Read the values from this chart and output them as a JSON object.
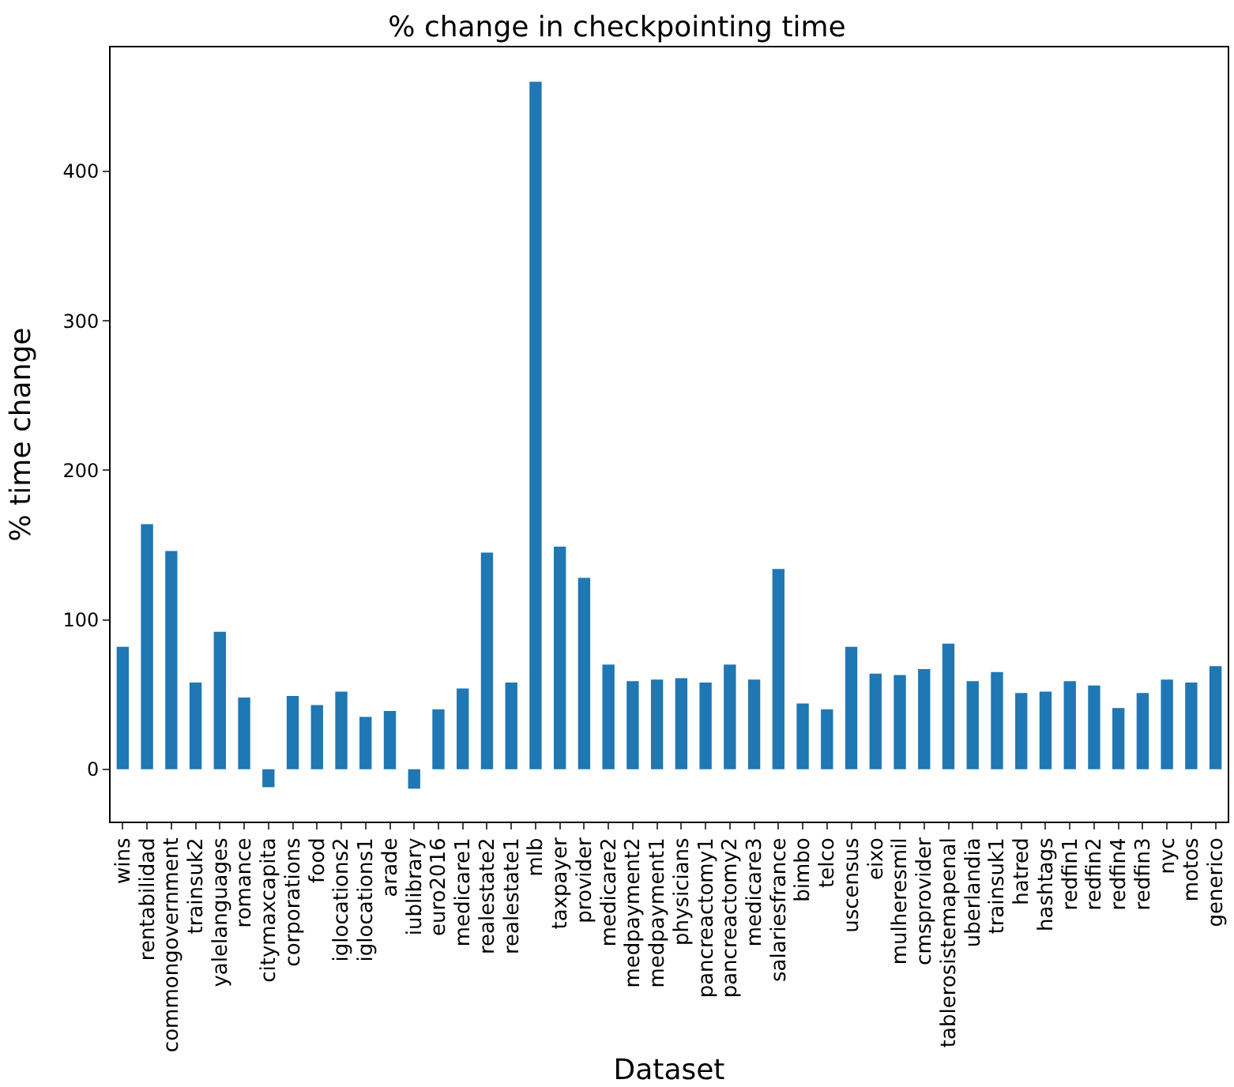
{
  "chart_data": {
    "type": "bar",
    "title": "% change in checkpointing time",
    "xlabel": "Dataset",
    "ylabel": "% time change",
    "categories": [
      "wins",
      "rentabilidad",
      "commongovernment",
      "trainsuk2",
      "yalelanguages",
      "romance",
      "citymaxcapita",
      "corporations",
      "food",
      "iglocations2",
      "iglocations1",
      "arade",
      "iublibrary",
      "euro2016",
      "medicare1",
      "realestate2",
      "realestate1",
      "mlb",
      "taxpayer",
      "provider",
      "medicare2",
      "medpayment2",
      "medpayment1",
      "physicians",
      "pancreactomy1",
      "pancreactomy2",
      "medicare3",
      "salariesfrance",
      "bimbo",
      "telco",
      "uscensus",
      "eixo",
      "mulheresmil",
      "cmsprovider",
      "tablerosistemapenal",
      "uberlandia",
      "trainsuk1",
      "hatred",
      "hashtags",
      "redfin1",
      "redfin2",
      "redfin4",
      "redfin3",
      "nyc",
      "motos",
      "generico"
    ],
    "values": [
      82,
      164,
      146,
      58,
      92,
      48,
      -12,
      49,
      43,
      52,
      35,
      39,
      -13,
      40,
      54,
      145,
      58,
      460,
      149,
      128,
      70,
      59,
      60,
      61,
      58,
      70,
      60,
      134,
      44,
      40,
      82,
      64,
      63,
      67,
      84,
      59,
      65,
      51,
      52,
      59,
      56,
      41,
      51,
      60,
      58,
      69
    ],
    "color": "#1f77b4",
    "ylim": [
      -35,
      483
    ],
    "yticks": [
      0,
      100,
      200,
      300,
      400
    ],
    "legend": false
  }
}
